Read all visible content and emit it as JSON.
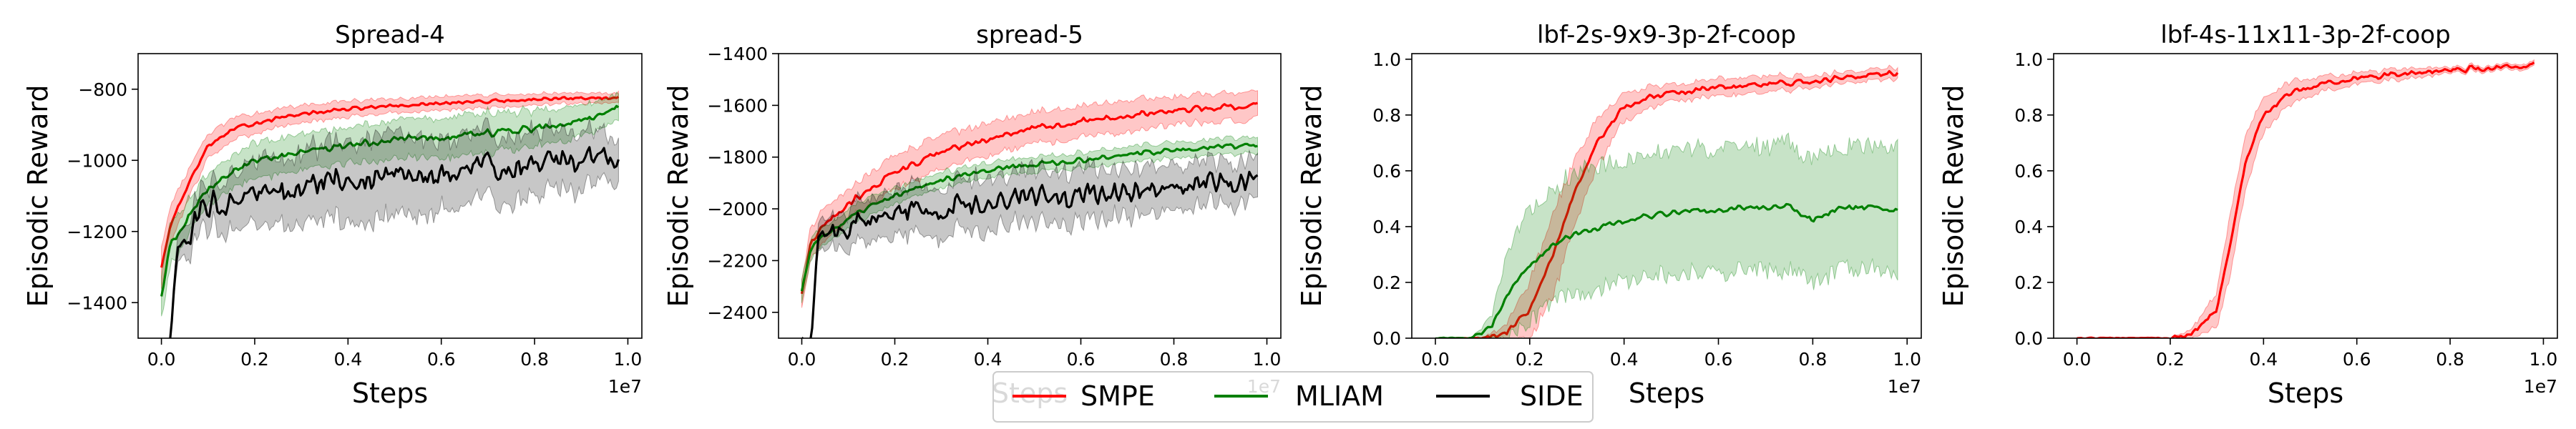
{
  "figure": {
    "legend": {
      "entries": [
        {
          "label": "SMPE",
          "color": "#ff0000"
        },
        {
          "label": "MLIAM",
          "color": "#008000"
        },
        {
          "label": "SIDE",
          "color": "#000000"
        }
      ]
    }
  },
  "chart_data": [
    {
      "type": "line",
      "title": "Spread-4",
      "xlabel": "Steps",
      "ylabel": "Episodic Reward",
      "x_offset_label": "1e7",
      "xlim": [
        -0.05,
        1.03
      ],
      "ylim": [
        -1500,
        -700
      ],
      "xticks": [
        0.0,
        0.2,
        0.4,
        0.6,
        0.8,
        1.0
      ],
      "xtick_labels": [
        "0.0",
        "0.2",
        "0.4",
        "0.6",
        "0.8",
        "1.0"
      ],
      "yticks": [
        -1400,
        -1200,
        -1000,
        -800
      ],
      "ytick_labels": [
        "−1400",
        "−1200",
        "−1000",
        "−800"
      ],
      "series": [
        {
          "name": "SMPE",
          "color": "#ff0000",
          "band_alpha": 0.22,
          "x": [
            0.0,
            0.02,
            0.05,
            0.1,
            0.15,
            0.2,
            0.3,
            0.4,
            0.5,
            0.6,
            0.7,
            0.8,
            0.9,
            0.98
          ],
          "y": [
            -1300,
            -1180,
            -1090,
            -960,
            -915,
            -895,
            -870,
            -855,
            -848,
            -840,
            -834,
            -830,
            -826,
            -822
          ],
          "band": [
            60,
            55,
            45,
            35,
            30,
            28,
            25,
            22,
            20,
            20,
            18,
            16,
            15,
            14
          ],
          "noise": 6
        },
        {
          "name": "MLIAM",
          "color": "#008000",
          "band_alpha": 0.22,
          "x": [
            0.0,
            0.02,
            0.05,
            0.1,
            0.15,
            0.2,
            0.3,
            0.4,
            0.5,
            0.6,
            0.7,
            0.8,
            0.9,
            0.98
          ],
          "y": [
            -1380,
            -1230,
            -1180,
            -1080,
            -1030,
            -1005,
            -975,
            -955,
            -942,
            -935,
            -925,
            -910,
            -890,
            -850
          ],
          "band": [
            60,
            60,
            50,
            45,
            45,
            50,
            50,
            50,
            55,
            55,
            55,
            50,
            45,
            35
          ],
          "noise": 12
        },
        {
          "name": "SIDE",
          "color": "#000000",
          "band_alpha": 0.22,
          "x": [
            0.0,
            0.02,
            0.035,
            0.06,
            0.1,
            0.15,
            0.2,
            0.3,
            0.4,
            0.5,
            0.6,
            0.7,
            0.8,
            0.9,
            0.98
          ],
          "y": [
            -1500,
            -1520,
            -1230,
            -1200,
            -1130,
            -1110,
            -1090,
            -1080,
            -1050,
            -1045,
            -1030,
            -1015,
            -1005,
            -990,
            -980
          ],
          "band": [
            0,
            0,
            40,
            50,
            60,
            80,
            90,
            100,
            110,
            120,
            100,
            90,
            90,
            80,
            60
          ],
          "noise": 45
        }
      ]
    },
    {
      "type": "line",
      "title": "spread-5",
      "xlabel": "Steps",
      "ylabel": "Episodic Reward",
      "x_offset_label": "1e7",
      "xlim": [
        -0.05,
        1.03
      ],
      "ylim": [
        -2500,
        -1400
      ],
      "xticks": [
        0.0,
        0.2,
        0.4,
        0.6,
        0.8,
        1.0
      ],
      "xtick_labels": [
        "0.0",
        "0.2",
        "0.4",
        "0.6",
        "0.8",
        "1.0"
      ],
      "yticks": [
        -2400,
        -2200,
        -2000,
        -1800,
        -1600,
        -1400
      ],
      "ytick_labels": [
        "−2400",
        "−2200",
        "−2000",
        "−1800",
        "−1600",
        "−1400"
      ],
      "series": [
        {
          "name": "SMPE",
          "color": "#ff0000",
          "band_alpha": 0.22,
          "x": [
            0.0,
            0.02,
            0.05,
            0.1,
            0.15,
            0.2,
            0.3,
            0.4,
            0.5,
            0.6,
            0.7,
            0.8,
            0.9,
            0.98
          ],
          "y": [
            -2330,
            -2130,
            -2060,
            -1980,
            -1920,
            -1860,
            -1780,
            -1730,
            -1690,
            -1660,
            -1640,
            -1620,
            -1605,
            -1600
          ],
          "band": [
            60,
            60,
            60,
            60,
            65,
            65,
            65,
            60,
            60,
            60,
            60,
            55,
            55,
            55
          ],
          "noise": 14
        },
        {
          "name": "MLIAM",
          "color": "#008000",
          "band_alpha": 0.22,
          "x": [
            0.0,
            0.02,
            0.05,
            0.1,
            0.15,
            0.2,
            0.3,
            0.4,
            0.5,
            0.6,
            0.7,
            0.8,
            0.9,
            0.98
          ],
          "y": [
            -2320,
            -2150,
            -2100,
            -2040,
            -1990,
            -1950,
            -1890,
            -1850,
            -1830,
            -1810,
            -1790,
            -1775,
            -1760,
            -1750
          ],
          "band": [
            40,
            40,
            35,
            35,
            35,
            30,
            30,
            30,
            30,
            30,
            30,
            30,
            30,
            30
          ],
          "noise": 12
        },
        {
          "name": "SIDE",
          "color": "#000000",
          "band_alpha": 0.22,
          "x": [
            0.0,
            0.02,
            0.035,
            0.06,
            0.1,
            0.15,
            0.2,
            0.3,
            0.4,
            0.5,
            0.6,
            0.7,
            0.8,
            0.9,
            0.98
          ],
          "y": [
            -2500,
            -2520,
            -2120,
            -2100,
            -2060,
            -2040,
            -2010,
            -2000,
            -1980,
            -1960,
            -1940,
            -1925,
            -1910,
            -1895,
            -1880
          ],
          "band": [
            0,
            0,
            50,
            60,
            70,
            80,
            90,
            100,
            100,
            100,
            100,
            90,
            90,
            80,
            80
          ],
          "noise": 55
        }
      ]
    },
    {
      "type": "line",
      "title": "lbf-2s-9x9-3p-2f-coop",
      "xlabel": "Steps",
      "ylabel": "Episodic Reward",
      "x_offset_label": "1e7",
      "xlim": [
        -0.05,
        1.03
      ],
      "ylim": [
        0.0,
        1.02
      ],
      "xticks": [
        0.0,
        0.2,
        0.4,
        0.6,
        0.8,
        1.0
      ],
      "xtick_labels": [
        "0.0",
        "0.2",
        "0.4",
        "0.6",
        "0.8",
        "1.0"
      ],
      "yticks": [
        0.0,
        0.2,
        0.4,
        0.6,
        0.8,
        1.0
      ],
      "ytick_labels": [
        "0.0",
        "0.2",
        "0.4",
        "0.6",
        "0.8",
        "1.0"
      ],
      "series": [
        {
          "name": "SMPE",
          "color": "#ff0000",
          "band_alpha": 0.22,
          "x": [
            0.0,
            0.1,
            0.15,
            0.2,
            0.25,
            0.3,
            0.35,
            0.4,
            0.45,
            0.5,
            0.6,
            0.7,
            0.8,
            0.9,
            0.98
          ],
          "y": [
            0.0,
            0.0,
            0.02,
            0.1,
            0.3,
            0.55,
            0.72,
            0.83,
            0.86,
            0.88,
            0.9,
            0.91,
            0.92,
            0.94,
            0.95
          ],
          "band": [
            0,
            0,
            0.03,
            0.1,
            0.15,
            0.12,
            0.08,
            0.05,
            0.04,
            0.03,
            0.03,
            0.03,
            0.02,
            0.02,
            0.02
          ],
          "noise": 0.012
        },
        {
          "name": "MLIAM",
          "color": "#008000",
          "band_alpha": 0.22,
          "x": [
            0.0,
            0.08,
            0.12,
            0.15,
            0.2,
            0.25,
            0.3,
            0.4,
            0.5,
            0.6,
            0.7,
            0.75,
            0.8,
            0.85,
            0.9,
            0.98
          ],
          "y": [
            0.0,
            0.0,
            0.04,
            0.15,
            0.26,
            0.34,
            0.38,
            0.42,
            0.45,
            0.46,
            0.47,
            0.47,
            0.42,
            0.46,
            0.47,
            0.46
          ],
          "band": [
            0,
            0,
            0.04,
            0.15,
            0.2,
            0.2,
            0.22,
            0.22,
            0.22,
            0.22,
            0.22,
            0.23,
            0.22,
            0.22,
            0.22,
            0.22
          ],
          "noise": 0.012
        }
      ]
    },
    {
      "type": "line",
      "title": "lbf-4s-11x11-3p-2f-coop",
      "xlabel": "Steps",
      "ylabel": "Episodic Reward",
      "x_offset_label": "1e7",
      "xlim": [
        -0.05,
        1.03
      ],
      "ylim": [
        0.0,
        1.02
      ],
      "xticks": [
        0.0,
        0.2,
        0.4,
        0.6,
        0.8,
        1.0
      ],
      "xtick_labels": [
        "0.0",
        "0.2",
        "0.4",
        "0.6",
        "0.8",
        "1.0"
      ],
      "yticks": [
        0.0,
        0.2,
        0.4,
        0.6,
        0.8,
        1.0
      ],
      "ytick_labels": [
        "0.0",
        "0.2",
        "0.4",
        "0.6",
        "0.8",
        "1.0"
      ],
      "series": [
        {
          "name": "SMPE",
          "color": "#ff0000",
          "band_alpha": 0.22,
          "x": [
            0.0,
            0.2,
            0.25,
            0.3,
            0.33,
            0.36,
            0.4,
            0.45,
            0.5,
            0.6,
            0.7,
            0.8,
            0.9,
            0.98
          ],
          "y": [
            0.0,
            0.0,
            0.02,
            0.1,
            0.35,
            0.62,
            0.8,
            0.87,
            0.9,
            0.93,
            0.95,
            0.96,
            0.97,
            0.98
          ],
          "band": [
            0,
            0,
            0.02,
            0.06,
            0.12,
            0.1,
            0.06,
            0.04,
            0.03,
            0.02,
            0.02,
            0.01,
            0.01,
            0.01
          ],
          "noise": 0.012
        }
      ]
    }
  ]
}
